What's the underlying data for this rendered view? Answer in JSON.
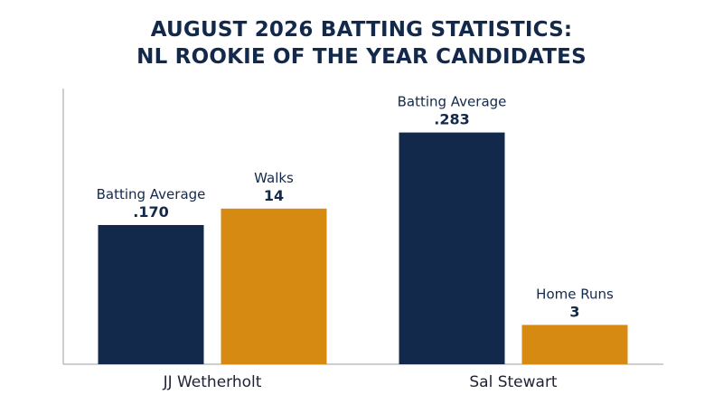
{
  "colors": {
    "navy": "#13294b",
    "gold": "#d68a12",
    "axis": "#9aa0a6",
    "text": "#13294b"
  },
  "chart_data": {
    "type": "bar",
    "title": "AUGUST 2026 BATTING STATISTICS:\nNL ROOKIE OF THE YEAR CANDIDATES",
    "title_lines": [
      "AUGUST 2026 BATTING STATISTICS:",
      "NL ROOKIE OF THE YEAR CANDIDATES"
    ],
    "xlabel": "",
    "ylabel": "",
    "grid": false,
    "categories": [
      "JJ Wetherholt",
      "Sal Stewart"
    ],
    "groups": [
      {
        "category": "JJ Wetherholt",
        "bars": [
          {
            "label": "Batting Average",
            "value_text": ".170",
            "value": 0.17,
            "color": "navy"
          },
          {
            "label": "Walks",
            "value_text": "14",
            "value": 14,
            "color": "gold"
          }
        ]
      },
      {
        "category": "Sal Stewart",
        "bars": [
          {
            "label": "Batting Average",
            "value_text": ".283",
            "value": 0.283,
            "color": "navy"
          },
          {
            "label": "Home Runs",
            "value_text": "3",
            "value": 3,
            "color": "gold"
          }
        ]
      }
    ]
  }
}
